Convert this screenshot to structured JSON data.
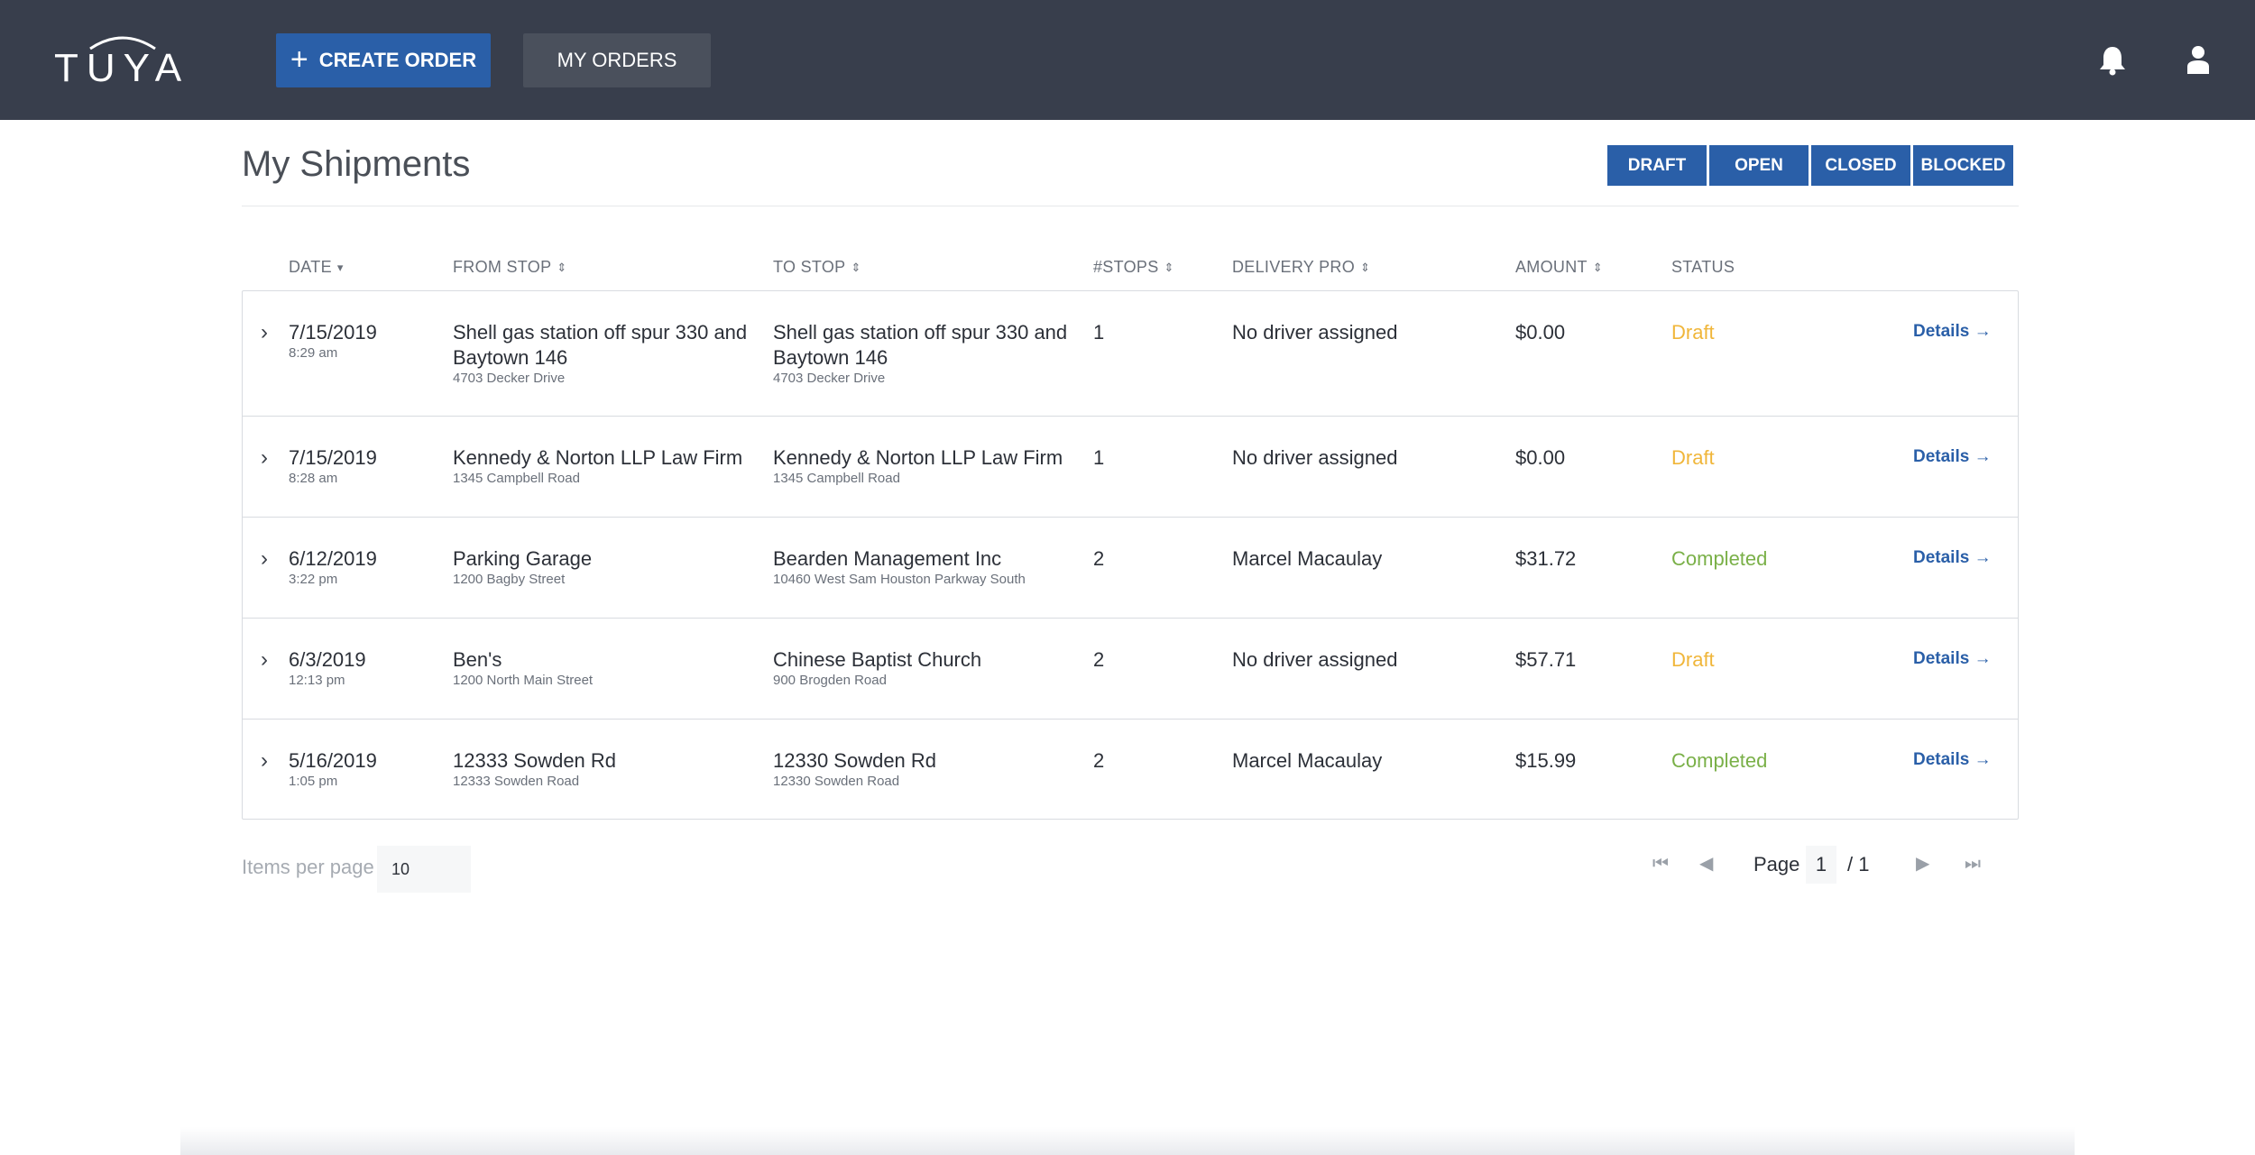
{
  "brand": {
    "logo_text": "TUYA"
  },
  "nav": {
    "create_order_label": "CREATE ORDER",
    "create_order_icon": "plus-icon",
    "my_orders_label": "MY ORDERS",
    "notifications_icon": "bell-icon",
    "profile_icon": "user-icon"
  },
  "page": {
    "title": "My Shipments",
    "filters": [
      "DRAFT",
      "OPEN",
      "CLOSED",
      "BLOCKED"
    ]
  },
  "table": {
    "columns": {
      "date": "DATE",
      "from": "FROM STOP",
      "to": "TO STOP",
      "stops": "#STOPS",
      "pro": "DELIVERY PRO",
      "amount": "AMOUNT",
      "status": "STATUS"
    },
    "details_label": "Details →",
    "rows": [
      {
        "date": "7/15/2019",
        "time": "8:29 am",
        "from_name": "Shell gas station off spur 330 and Baytown 146",
        "from_addr": "4703 Decker Drive",
        "to_name": "Shell gas station off spur 330 and Baytown 146",
        "to_addr": "4703 Decker Drive",
        "stops": "1",
        "pro": "No driver assigned",
        "amount": "$0.00",
        "status": "Draft"
      },
      {
        "date": "7/15/2019",
        "time": "8:28 am",
        "from_name": "Kennedy & Norton LLP Law Firm",
        "from_addr": "1345 Campbell Road",
        "to_name": "Kennedy & Norton LLP Law Firm",
        "to_addr": "1345 Campbell Road",
        "stops": "1",
        "pro": "No driver assigned",
        "amount": "$0.00",
        "status": "Draft"
      },
      {
        "date": "6/12/2019",
        "time": "3:22 pm",
        "from_name": "Parking Garage",
        "from_addr": "1200 Bagby Street",
        "to_name": "Bearden Management Inc",
        "to_addr": "10460 West Sam Houston Parkway South",
        "stops": "2",
        "pro": "Marcel Macaulay",
        "amount": "$31.72",
        "status": "Completed"
      },
      {
        "date": "6/3/2019",
        "time": "12:13 pm",
        "from_name": "Ben's",
        "from_addr": "1200 North Main Street",
        "to_name": "Chinese Baptist Church",
        "to_addr": "900 Brogden Road",
        "stops": "2",
        "pro": "No driver assigned",
        "amount": "$57.71",
        "status": "Draft"
      },
      {
        "date": "5/16/2019",
        "time": "1:05 pm",
        "from_name": "12333 Sowden Rd",
        "from_addr": "12333 Sowden Road",
        "to_name": "12330 Sowden Rd",
        "to_addr": "12330 Sowden Road",
        "stops": "2",
        "pro": "Marcel Macaulay",
        "amount": "$15.99",
        "status": "Completed"
      }
    ]
  },
  "pagination": {
    "items_per_page_label": "Items per page",
    "items_per_page_value": "10",
    "page_label": "Page",
    "current_page": "1",
    "total_label": "/ 1"
  },
  "colors": {
    "topbar": "#383e4c",
    "primary": "#2a5fa8",
    "draft": "#f0b63a",
    "completed": "#7ab048"
  }
}
